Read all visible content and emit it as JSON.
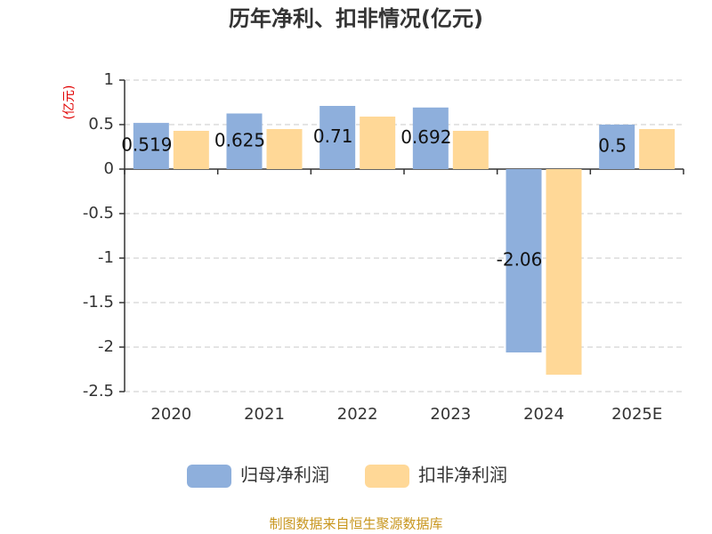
{
  "chart_data": {
    "type": "bar",
    "title": "历年净利、扣非情况(亿元)",
    "y_label": "(亿元)",
    "categories": [
      "2020",
      "2021",
      "2022",
      "2023",
      "2024",
      "2025E"
    ],
    "series": [
      {
        "name": "归母净利润",
        "color": "#8eafdc",
        "data_labels": true,
        "values": [
          0.519,
          0.625,
          0.71,
          0.692,
          -2.06,
          0.5
        ]
      },
      {
        "name": "扣非净利润",
        "color": "#ffd897",
        "data_labels": false,
        "values": [
          0.43,
          0.45,
          0.59,
          0.43,
          -2.31,
          0.45
        ]
      }
    ],
    "ylim": [
      -2.5,
      1
    ],
    "yticks": [
      -2.5,
      -2,
      -1.5,
      -1,
      -0.5,
      0,
      0.5,
      1
    ],
    "grid": true,
    "source": "制图数据来自恒生聚源数据库"
  }
}
